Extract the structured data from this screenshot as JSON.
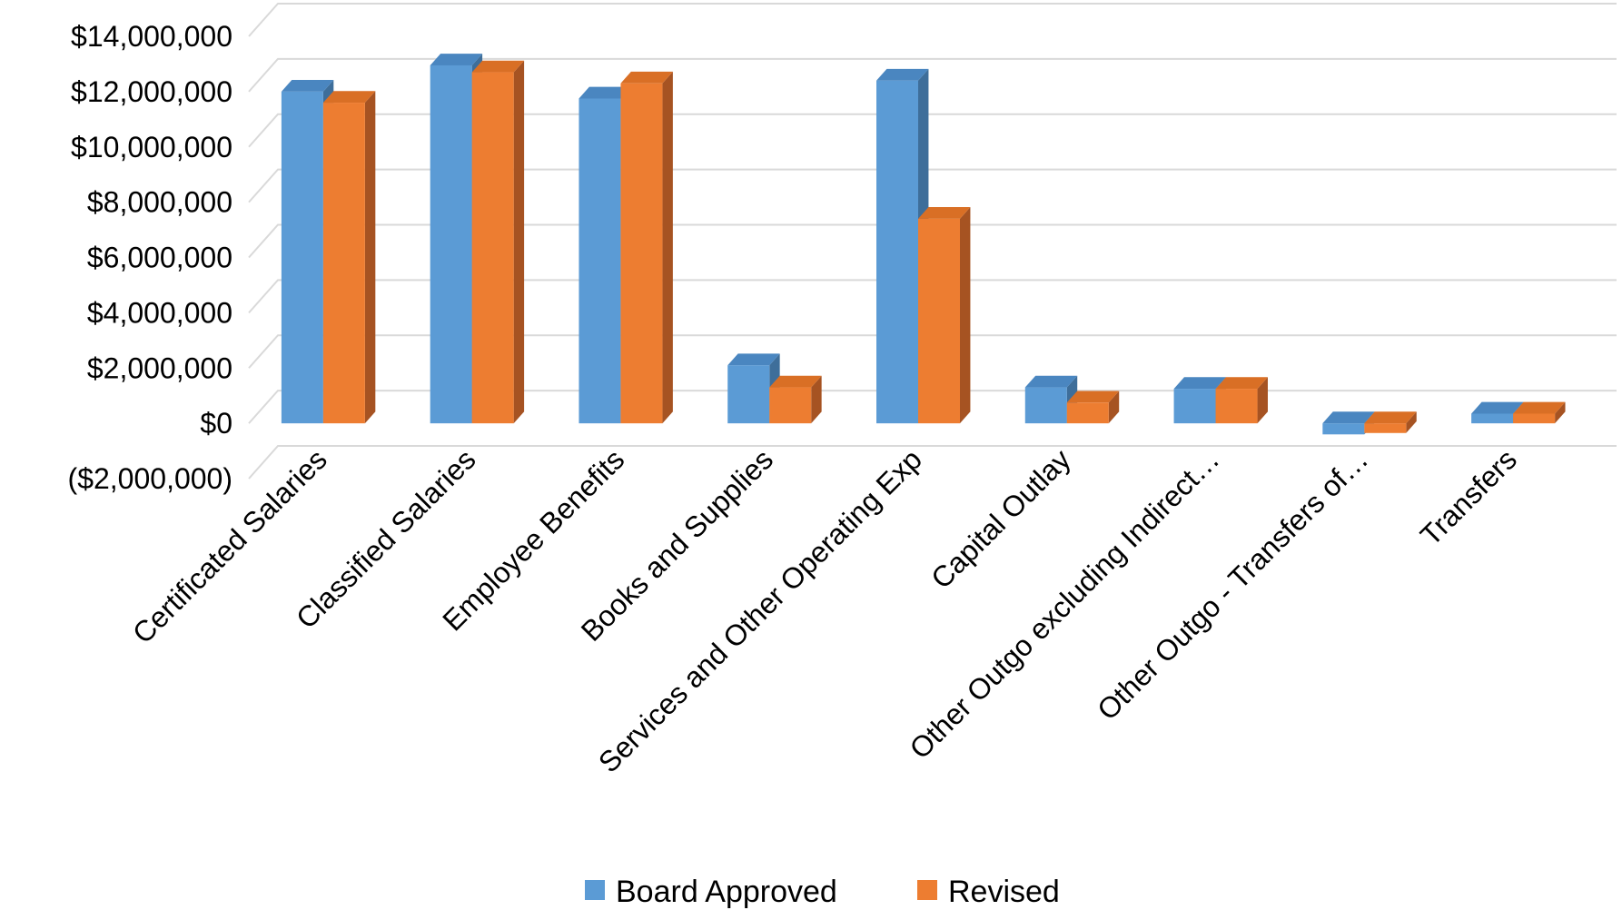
{
  "chart_data": {
    "type": "bar",
    "style": "3d-clustered-column",
    "categories": [
      "Certificated Salaries",
      "Classified Salaries",
      "Employee Benefits",
      "Books and Supplies",
      "Services and Other Operating Exp",
      "Capital Outlay",
      "Other Outgo excluding Indirect…",
      "Other Outgo - Transfers of…",
      "Transfers"
    ],
    "series": [
      {
        "name": "Board Approved",
        "color": "#5B9BD5",
        "values": [
          12000000,
          12950000,
          11750000,
          2100000,
          12400000,
          1300000,
          1250000,
          -400000,
          350000
        ]
      },
      {
        "name": "Revised",
        "color": "#ED7D31",
        "values": [
          11600000,
          12700000,
          12300000,
          1300000,
          7400000,
          750000,
          1250000,
          -350000,
          350000
        ]
      }
    ],
    "ylim": [
      -2000000,
      14000000
    ],
    "yticks": [
      {
        "value": 14000000,
        "label": "$14,000,000"
      },
      {
        "value": 12000000,
        "label": "$12,000,000"
      },
      {
        "value": 10000000,
        "label": "$10,000,000"
      },
      {
        "value": 8000000,
        "label": "$8,000,000"
      },
      {
        "value": 6000000,
        "label": "$6,000,000"
      },
      {
        "value": 4000000,
        "label": "$4,000,000"
      },
      {
        "value": 2000000,
        "label": "$2,000,000"
      },
      {
        "value": 0,
        "label": "$0"
      },
      {
        "value": -2000000,
        "label": "($2,000,000)"
      }
    ],
    "grid": true,
    "legend_position": "bottom",
    "title": "",
    "xlabel": "",
    "ylabel": ""
  }
}
